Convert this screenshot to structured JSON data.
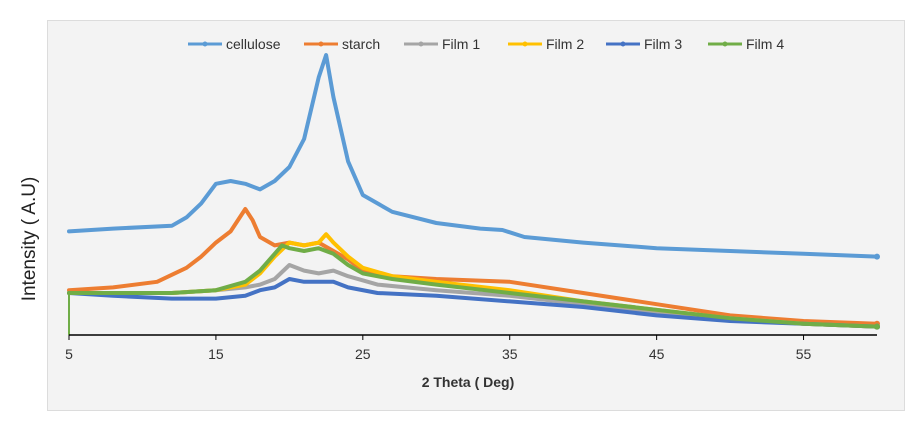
{
  "chart_data": {
    "type": "line",
    "title": "",
    "xlabel": "2 Theta ( Deg)",
    "ylabel": "Intensity ( A.U)",
    "xlim": [
      5,
      60
    ],
    "ylim": [
      0,
      100
    ],
    "xticks": [
      "5",
      "15",
      "25",
      "35",
      "45",
      "55"
    ],
    "xtick_values": [
      5,
      15,
      25,
      35,
      45,
      55
    ],
    "grid": false,
    "legend_position": "top",
    "series": [
      {
        "name": "cellulose",
        "color": "#5b9bd5",
        "x": [
          5,
          8,
          12,
          13,
          14,
          15,
          16,
          17,
          18,
          19,
          20,
          21,
          22,
          22.5,
          23,
          24,
          25,
          27,
          30,
          33,
          34.5,
          36,
          40,
          45,
          50,
          55,
          60
        ],
        "y": [
          37,
          38,
          39,
          42,
          47,
          54,
          55,
          54,
          52,
          55,
          60,
          70,
          92,
          100,
          85,
          62,
          50,
          44,
          40,
          38,
          37.5,
          35,
          33,
          31,
          30,
          29,
          28
        ]
      },
      {
        "name": "starch",
        "color": "#ed7d31",
        "x": [
          5,
          8,
          11,
          13,
          14,
          15,
          16,
          17,
          17.5,
          18,
          19,
          20,
          21,
          22,
          23,
          24,
          25,
          27,
          30,
          35,
          40,
          45,
          50,
          55,
          60
        ],
        "y": [
          16,
          17,
          19,
          24,
          28,
          33,
          37,
          45,
          41,
          35,
          32,
          33,
          32,
          33,
          30,
          27,
          23,
          21,
          20,
          19,
          15,
          11,
          7,
          5,
          4
        ]
      },
      {
        "name": "Film 1",
        "color": "#a5a5a5",
        "x": [
          5,
          8,
          12,
          15,
          17,
          18,
          19,
          20,
          21,
          22,
          23,
          24,
          26,
          30,
          35,
          40,
          45,
          50,
          55,
          60
        ],
        "y": [
          15,
          15,
          15,
          16,
          17,
          18,
          20,
          25,
          23,
          22,
          23,
          21,
          18,
          16,
          14,
          11,
          8,
          6,
          4,
          3
        ]
      },
      {
        "name": "Film 2",
        "color": "#ffc000",
        "x": [
          5,
          8,
          12,
          15,
          17,
          18,
          19,
          20,
          21,
          22,
          22.5,
          23,
          24,
          25,
          27,
          30,
          35,
          40,
          45,
          50,
          55,
          60
        ],
        "y": [
          15,
          15,
          15,
          16,
          18,
          22,
          28,
          33,
          32,
          33,
          36,
          33,
          28,
          24,
          21,
          19,
          16,
          12,
          9,
          6,
          4,
          3
        ]
      },
      {
        "name": "Film 3",
        "color": "#4472c4",
        "x": [
          5,
          8,
          12,
          15,
          17,
          18,
          19,
          20,
          21,
          22,
          23,
          24,
          26,
          30,
          35,
          40,
          45,
          50,
          55,
          60
        ],
        "y": [
          15,
          14,
          13,
          13,
          14,
          16,
          17,
          20,
          19,
          19,
          19,
          17,
          15,
          14,
          12,
          10,
          7,
          5,
          4,
          3
        ]
      },
      {
        "name": "Film 4",
        "color": "#70ad47",
        "x": [
          5,
          8,
          12,
          15,
          17,
          18,
          19,
          19.5,
          20,
          21,
          22,
          23,
          24,
          25,
          27,
          30,
          35,
          40,
          45,
          50,
          55,
          60
        ],
        "y": [
          15,
          15,
          15,
          16,
          19,
          23,
          29,
          32,
          31,
          30,
          31,
          29,
          25,
          22,
          20,
          18,
          15,
          12,
          9,
          6,
          4,
          3
        ]
      }
    ]
  }
}
